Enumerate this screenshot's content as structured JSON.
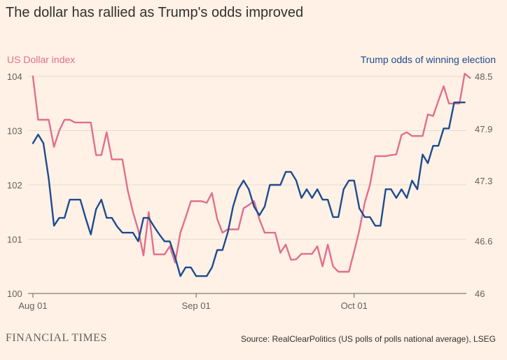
{
  "title": "The dollar has rallied as Trump's odds improved",
  "brand": "FINANCIAL TIMES",
  "source": "Source: RealClearPolitics (US polls of polls national average), LSEG",
  "colors": {
    "background": "#fff1e5",
    "dollar": "#e06f8e",
    "trump": "#1d4b8f",
    "grid": "#e6dad0",
    "axis": "#66605c"
  },
  "chart_data": {
    "type": "line",
    "x_ticks": [
      "Aug 01",
      "Sep 01",
      "Oct 01"
    ],
    "x_tick_index": [
      0,
      31,
      61
    ],
    "y_left": {
      "label": "US Dollar index",
      "ticks": [
        "104",
        "103",
        "102",
        "101",
        "100"
      ],
      "range": [
        100,
        104
      ]
    },
    "y_right": {
      "label": "Trump odds of winning election",
      "ticks": [
        "48.5",
        "47.9",
        "47.3",
        "46.6",
        "46"
      ],
      "range": [
        46,
        48.5
      ]
    },
    "grid": true,
    "series": [
      {
        "name": "US Dollar index",
        "axis": "left",
        "values": [
          104.0,
          103.2,
          103.2,
          103.2,
          102.7,
          103.0,
          103.2,
          103.2,
          103.15,
          103.15,
          103.15,
          103.15,
          102.55,
          102.55,
          102.97,
          102.47,
          102.47,
          102.47,
          101.9,
          101.5,
          101.17,
          100.7,
          101.5,
          100.72,
          100.72,
          100.72,
          100.87,
          100.57,
          101.12,
          101.4,
          101.7,
          101.7,
          101.7,
          101.67,
          101.85,
          101.37,
          101.12,
          101.18,
          101.18,
          101.18,
          101.57,
          101.63,
          101.7,
          101.37,
          101.12,
          101.12,
          101.12,
          100.75,
          100.9,
          100.62,
          100.63,
          100.73,
          100.73,
          100.73,
          100.87,
          100.5,
          100.9,
          100.5,
          100.4,
          100.4,
          100.4,
          100.77,
          101.17,
          101.67,
          102.0,
          102.53,
          102.53,
          102.53,
          102.55,
          102.56,
          102.92,
          102.97,
          102.9,
          102.9,
          102.9,
          103.3,
          103.27,
          103.55,
          103.82,
          103.5,
          103.5,
          103.5,
          104.05,
          103.97
        ]
      },
      {
        "name": "Trump odds of winning election",
        "axis": "right",
        "values": [
          47.73,
          47.83,
          47.73,
          47.32,
          46.78,
          46.87,
          46.87,
          47.08,
          47.08,
          47.08,
          46.87,
          46.68,
          46.97,
          47.08,
          46.87,
          46.87,
          46.77,
          46.7,
          46.7,
          46.7,
          46.6,
          46.87,
          46.87,
          46.77,
          46.68,
          46.6,
          46.6,
          46.42,
          46.2,
          46.3,
          46.3,
          46.2,
          46.2,
          46.2,
          46.3,
          46.5,
          46.5,
          46.7,
          47.0,
          47.2,
          47.3,
          47.2,
          47.0,
          46.9,
          47.0,
          47.25,
          47.25,
          47.25,
          47.4,
          47.4,
          47.3,
          47.1,
          47.2,
          47.1,
          47.2,
          47.08,
          47.08,
          46.88,
          46.88,
          47.2,
          47.3,
          47.3,
          46.98,
          46.88,
          46.88,
          46.78,
          46.78,
          47.2,
          47.2,
          47.1,
          47.2,
          47.1,
          47.3,
          47.2,
          47.6,
          47.5,
          47.7,
          47.7,
          47.9,
          47.9,
          48.2,
          48.2,
          48.2
        ]
      }
    ]
  }
}
